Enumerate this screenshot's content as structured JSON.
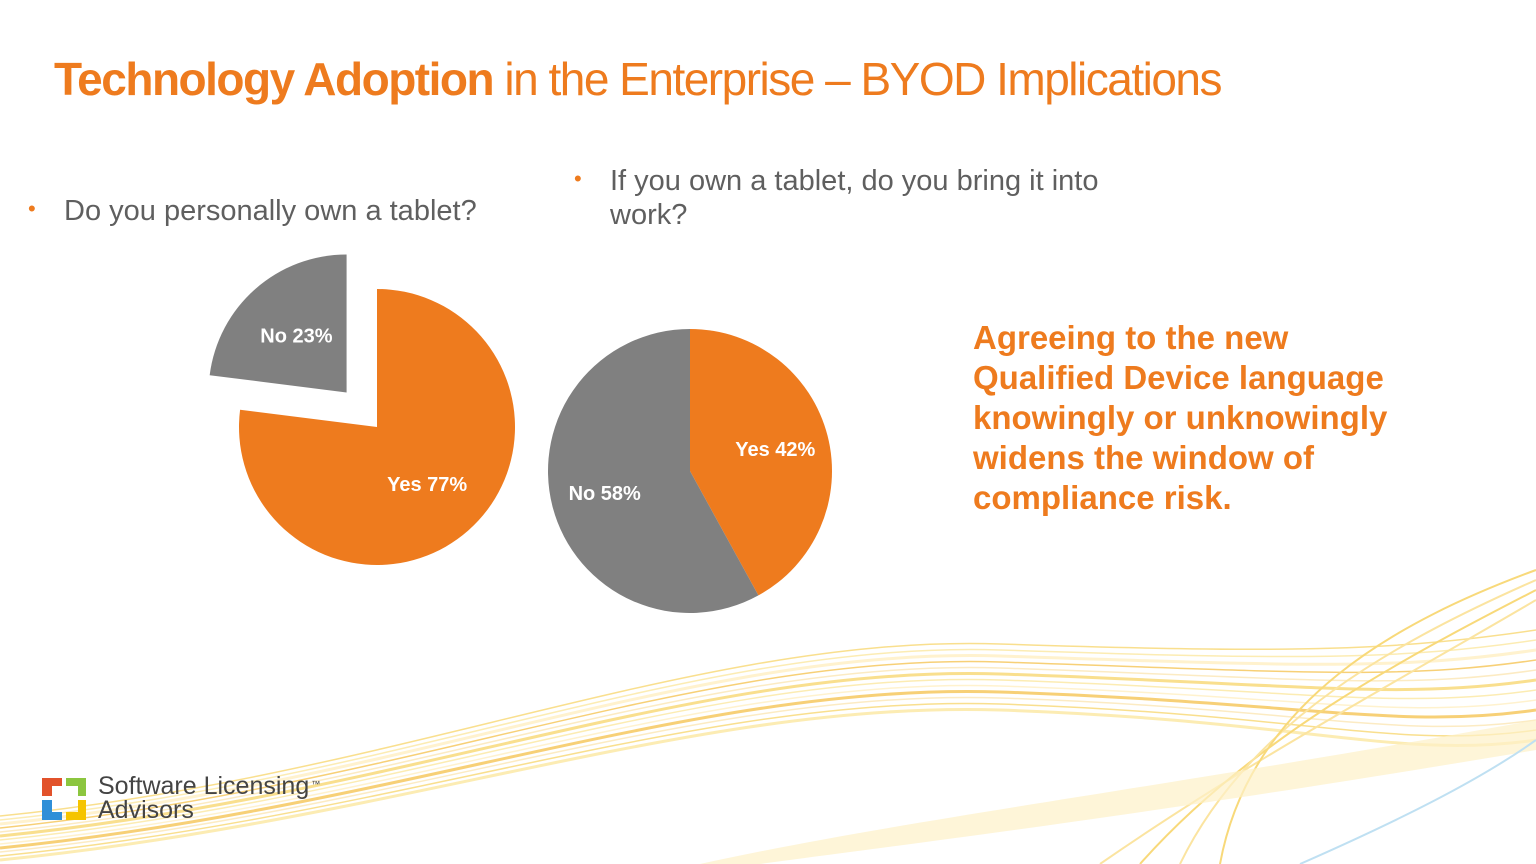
{
  "title": {
    "bold": "Technology Adoption",
    "rest": " in the Enterprise – BYOD Implications"
  },
  "bullets": [
    "Do you personally own a tablet?",
    "If you own a tablet, do you bring it into work?"
  ],
  "callout": "Agreeing to the new Qualified Device language knowingly or unknowingly widens the window of compliance risk.",
  "logo": {
    "line1": "Software Licensing",
    "line2": "Advisors",
    "tm": "™"
  },
  "colors": {
    "accent": "#ee7b1e",
    "slice_orange": "#ee7b1e",
    "slice_gray": "#808080",
    "text_gray": "#5f5f5f"
  },
  "chart_data": [
    {
      "type": "pie",
      "slices": [
        {
          "label": "Yes 77%",
          "value": 77,
          "color": "#ee7b1e"
        },
        {
          "label": "No 23%",
          "value": 23,
          "color": "#808080",
          "exploded": true
        }
      ]
    },
    {
      "type": "pie",
      "slices": [
        {
          "label": "Yes 42%",
          "value": 42,
          "color": "#ee7b1e"
        },
        {
          "label": "No 58%",
          "value": 58,
          "color": "#808080"
        }
      ]
    }
  ]
}
